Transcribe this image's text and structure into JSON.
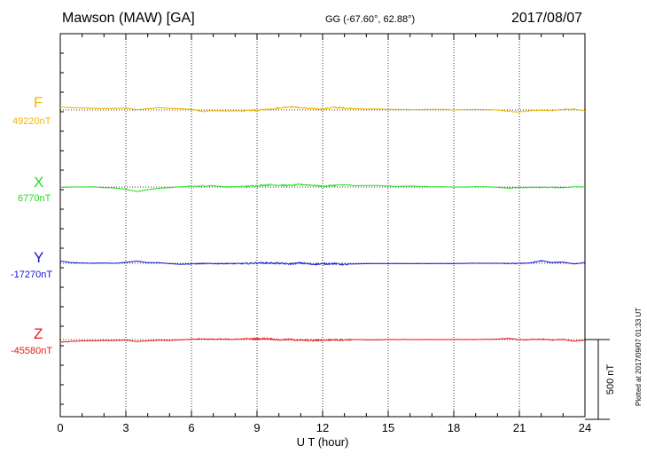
{
  "header": {
    "station": "Mawson (MAW)  [GA]",
    "coords": "GG (-67.60°,  62.88°)",
    "date": "2017/08/07"
  },
  "footer_note": "Plotted at 2017/09/07 01:33 UT",
  "scale_label": "500 nT",
  "chart_data": {
    "type": "line",
    "title": "Mawson (MAW)  [GA]",
    "xlabel": "U T (hour)",
    "xlim": [
      0,
      24
    ],
    "xticks": [
      "0",
      "3",
      "6",
      "9",
      "12",
      "15",
      "18",
      "21",
      "24"
    ],
    "grid": true,
    "scale_bar_nT": 500,
    "series": [
      {
        "name": "F",
        "baseline": "49220nT",
        "color": "#f5b400",
        "x": [
          0,
          0.5,
          1,
          1.5,
          2,
          2.5,
          3,
          3.5,
          4,
          4.5,
          5,
          5.5,
          6,
          6.5,
          7,
          7.5,
          8,
          8.5,
          9,
          9.5,
          10,
          10.5,
          11,
          11.5,
          12,
          12.5,
          13,
          13.5,
          14,
          14.5,
          15,
          15.5,
          16,
          16.5,
          17,
          17.5,
          18,
          18.5,
          19,
          19.5,
          20,
          20.5,
          21,
          21.5,
          22,
          22.5,
          23,
          23.5,
          24
        ],
        "y": [
          18,
          14,
          12,
          10,
          10,
          10,
          12,
          2,
          8,
          14,
          10,
          8,
          4,
          -10,
          -4,
          -6,
          -6,
          -6,
          -2,
          4,
          12,
          20,
          14,
          8,
          4,
          16,
          12,
          8,
          6,
          6,
          4,
          4,
          2,
          2,
          4,
          4,
          0,
          2,
          4,
          2,
          0,
          -8,
          -12,
          -4,
          -2,
          -4,
          4,
          6,
          -6
        ]
      },
      {
        "name": "X",
        "baseline": "6770nT",
        "color": "#22dd22",
        "x": [
          0,
          0.5,
          1,
          1.5,
          2,
          2.5,
          3,
          3.5,
          4,
          4.5,
          5,
          5.5,
          6,
          6.5,
          7,
          7.5,
          8,
          8.5,
          9,
          9.5,
          10,
          10.5,
          11,
          11.5,
          12,
          12.5,
          13,
          13.5,
          14,
          14.5,
          15,
          15.5,
          16,
          16.5,
          17,
          17.5,
          18,
          18.5,
          19,
          19.5,
          20,
          20.5,
          21,
          21.5,
          22,
          22.5,
          23,
          23.5,
          24
        ],
        "y": [
          -2,
          0,
          0,
          2,
          -4,
          -6,
          -14,
          -28,
          -16,
          -8,
          -4,
          2,
          4,
          6,
          8,
          2,
          2,
          4,
          8,
          14,
          12,
          10,
          16,
          12,
          4,
          10,
          14,
          8,
          10,
          10,
          6,
          4,
          6,
          4,
          2,
          2,
          0,
          0,
          2,
          2,
          -2,
          -6,
          -4,
          -2,
          -2,
          -2,
          -4,
          2,
          0
        ]
      },
      {
        "name": "Y",
        "baseline": "-17270nT",
        "color": "#1414d2",
        "x": [
          0,
          0.5,
          1,
          1.5,
          2,
          2.5,
          3,
          3.5,
          4,
          4.5,
          5,
          5.5,
          6,
          6.5,
          7,
          7.5,
          8,
          8.5,
          9,
          9.5,
          10,
          10.5,
          11,
          11.5,
          12,
          12.5,
          13,
          13.5,
          14,
          14.5,
          15,
          15.5,
          16,
          16.5,
          17,
          17.5,
          18,
          18.5,
          19,
          19.5,
          20,
          20.5,
          21,
          21.5,
          22,
          22.5,
          23,
          23.5,
          24
        ],
        "y": [
          14,
          4,
          2,
          0,
          2,
          0,
          6,
          14,
          4,
          4,
          -2,
          -6,
          -4,
          -2,
          -2,
          -2,
          -2,
          -2,
          2,
          2,
          0,
          -4,
          2,
          -6,
          -4,
          -2,
          -8,
          -4,
          -2,
          -2,
          -2,
          -2,
          -2,
          -2,
          -2,
          -2,
          -2,
          0,
          0,
          0,
          0,
          -2,
          0,
          2,
          16,
          4,
          8,
          -4,
          4
        ]
      },
      {
        "name": "Z",
        "baseline": "-45580nT",
        "color": "#e81818",
        "x": [
          0,
          0.5,
          1,
          1.5,
          2,
          2.5,
          3,
          3.5,
          4,
          4.5,
          5,
          5.5,
          6,
          6.5,
          7,
          7.5,
          8,
          8.5,
          9,
          9.5,
          10,
          10.5,
          11,
          11.5,
          12,
          12.5,
          13,
          13.5,
          14,
          14.5,
          15,
          15.5,
          16,
          16.5,
          17,
          17.5,
          18,
          18.5,
          19,
          19.5,
          20,
          20.5,
          21,
          21.5,
          22,
          22.5,
          23,
          23.5,
          24
        ],
        "y": [
          -16,
          -12,
          -8,
          -8,
          -6,
          -6,
          -4,
          -12,
          -8,
          -4,
          -6,
          -2,
          2,
          4,
          2,
          2,
          2,
          4,
          4,
          6,
          -2,
          0,
          -4,
          -6,
          -4,
          -2,
          -2,
          0,
          -2,
          -2,
          0,
          0,
          0,
          0,
          0,
          0,
          0,
          0,
          0,
          2,
          2,
          8,
          -2,
          0,
          2,
          -2,
          0,
          -10,
          -4
        ]
      }
    ]
  }
}
